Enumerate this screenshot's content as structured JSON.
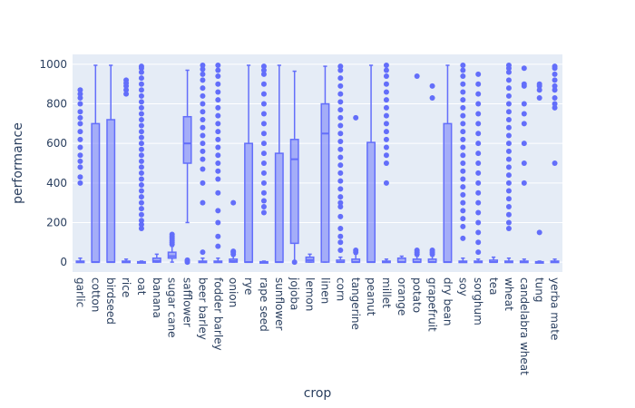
{
  "chart_data": {
    "type": "box",
    "xlabel": "crop",
    "ylabel": "performance",
    "ylim": [
      -50,
      1050
    ],
    "yticks": [
      0,
      200,
      400,
      600,
      800,
      1000
    ],
    "grid": true,
    "colors": {
      "plot_bg": "#E5ECF6",
      "box": "#636EFA",
      "box_fill": "rgba(99,110,250,0.5)",
      "grid": "#ffffff",
      "text": "#2a3f5f"
    },
    "categories": [
      "garlic",
      "cotton",
      "birdseed",
      "rice",
      "oat",
      "banana",
      "sugar cane",
      "safflower",
      "beer barley",
      "fodder barley",
      "onion",
      "rye",
      "rape seed",
      "sunflower",
      "jojoba",
      "lemon",
      "linen",
      "corn",
      "tangerine",
      "peanut",
      "millet",
      "orange",
      "potato",
      "grapefruit",
      "dry bean",
      "soy",
      "sorghum",
      "tea",
      "wheat",
      "candelabra wheat",
      "tung",
      "yerba mate"
    ],
    "boxes": [
      {
        "min": 0,
        "q1": 0,
        "median": 0,
        "q3": 5,
        "max": 20,
        "outliers": [
          400,
          430,
          480,
          510,
          540,
          580,
          620,
          660,
          700,
          730,
          760,
          800,
          830,
          850,
          870
        ]
      },
      {
        "min": 0,
        "q1": 0,
        "median": 0,
        "q3": 700,
        "max": 995,
        "outliers": []
      },
      {
        "min": 0,
        "q1": 0,
        "median": 0,
        "q3": 720,
        "max": 995,
        "outliers": []
      },
      {
        "min": 0,
        "q1": 0,
        "median": 0,
        "q3": 5,
        "max": 15,
        "outliers": [
          850,
          870,
          890,
          905,
          920
        ]
      },
      {
        "min": 0,
        "q1": 0,
        "median": 0,
        "q3": 2,
        "max": 5,
        "outliers": [
          170,
          190,
          210,
          240,
          270,
          300,
          330,
          360,
          390,
          420,
          450,
          480,
          510,
          540,
          570,
          600,
          630,
          660,
          690,
          720,
          750,
          780,
          810,
          840,
          870,
          900,
          930,
          960,
          980,
          990
        ]
      },
      {
        "min": 0,
        "q1": 0,
        "median": 5,
        "q3": 20,
        "max": 40,
        "outliers": []
      },
      {
        "min": 0,
        "q1": 20,
        "median": 30,
        "q3": 50,
        "max": 80,
        "outliers": [
          90,
          100,
          110,
          120,
          130,
          140
        ]
      },
      {
        "min": 200,
        "q1": 500,
        "median": 600,
        "q3": 735,
        "max": 970,
        "outliers": [
          0,
          5,
          10
        ]
      },
      {
        "min": 0,
        "q1": 0,
        "median": 0,
        "q3": 5,
        "max": 20,
        "outliers": [
          50,
          300,
          400,
          470,
          520,
          560,
          600,
          640,
          680,
          720,
          760,
          800,
          840,
          880,
          920,
          950,
          975,
          995
        ]
      },
      {
        "min": 0,
        "q1": 0,
        "median": 0,
        "q3": 5,
        "max": 20,
        "outliers": [
          80,
          130,
          200,
          260,
          350,
          420,
          460,
          500,
          540,
          580,
          620,
          660,
          700,
          740,
          780,
          820,
          860,
          900,
          940,
          970,
          995
        ]
      },
      {
        "min": 0,
        "q1": 0,
        "median": 5,
        "q3": 15,
        "max": 30,
        "outliers": [
          40,
          50,
          55,
          300
        ]
      },
      {
        "min": 0,
        "q1": 0,
        "median": 0,
        "q3": 600,
        "max": 995,
        "outliers": []
      },
      {
        "min": 0,
        "q1": 0,
        "median": 0,
        "q3": 2,
        "max": 5,
        "outliers": [
          250,
          280,
          310,
          350,
          400,
          450,
          500,
          550,
          600,
          650,
          700,
          750,
          800,
          850,
          900,
          950,
          970,
          990
        ]
      },
      {
        "min": 0,
        "q1": 0,
        "median": 0,
        "q3": 550,
        "max": 995,
        "outliers": []
      },
      {
        "min": 0,
        "q1": 95,
        "median": 520,
        "q3": 620,
        "max": 965,
        "outliers": [
          0
        ]
      },
      {
        "min": 0,
        "q1": 0,
        "median": 10,
        "q3": 25,
        "max": 40,
        "outliers": []
      },
      {
        "min": 0,
        "q1": 0,
        "median": 650,
        "q3": 800,
        "max": 990,
        "outliers": []
      },
      {
        "min": 0,
        "q1": 0,
        "median": 0,
        "q3": 10,
        "max": 25,
        "outliers": [
          60,
          100,
          130,
          170,
          230,
          280,
          300,
          330,
          370,
          410,
          450,
          490,
          530,
          570,
          610,
          650,
          690,
          730,
          770,
          810,
          850,
          890,
          930,
          970,
          990
        ]
      },
      {
        "min": 0,
        "q1": 0,
        "median": 0,
        "q3": 15,
        "max": 40,
        "outliers": [
          50,
          60,
          730
        ]
      },
      {
        "min": 0,
        "q1": 0,
        "median": 0,
        "q3": 605,
        "max": 995,
        "outliers": []
      },
      {
        "min": 0,
        "q1": 0,
        "median": 0,
        "q3": 5,
        "max": 15,
        "outliers": [
          400,
          500,
          540,
          580,
          620,
          660,
          700,
          740,
          780,
          820,
          860,
          900,
          940,
          970,
          995
        ]
      },
      {
        "min": 0,
        "q1": 0,
        "median": 0,
        "q3": 20,
        "max": 30,
        "outliers": []
      },
      {
        "min": 0,
        "q1": 0,
        "median": 0,
        "q3": 15,
        "max": 30,
        "outliers": [
          40,
          50,
          60,
          940
        ]
      },
      {
        "min": 0,
        "q1": 0,
        "median": 0,
        "q3": 15,
        "max": 30,
        "outliers": [
          40,
          50,
          60,
          830,
          890
        ]
      },
      {
        "min": 0,
        "q1": 0,
        "median": 0,
        "q3": 700,
        "max": 995,
        "outliers": []
      },
      {
        "min": 0,
        "q1": 0,
        "median": 0,
        "q3": 5,
        "max": 20,
        "outliers": [
          120,
          180,
          220,
          260,
          300,
          340,
          380,
          420,
          460,
          500,
          540,
          580,
          620,
          660,
          700,
          740,
          780,
          820,
          860,
          900,
          940,
          970,
          995
        ]
      },
      {
        "min": 0,
        "q1": 0,
        "median": 0,
        "q3": 5,
        "max": 15,
        "outliers": [
          50,
          100,
          150,
          200,
          250,
          300,
          350,
          400,
          450,
          500,
          550,
          600,
          650,
          700,
          750,
          800,
          850,
          900,
          950
        ]
      },
      {
        "min": 0,
        "q1": 0,
        "median": 0,
        "q3": 10,
        "max": 25,
        "outliers": []
      },
      {
        "min": 0,
        "q1": 0,
        "median": 0,
        "q3": 5,
        "max": 20,
        "outliers": [
          170,
          200,
          240,
          280,
          320,
          360,
          400,
          440,
          480,
          520,
          560,
          600,
          640,
          680,
          720,
          760,
          800,
          840,
          880,
          920,
          960,
          980,
          995
        ]
      },
      {
        "min": 0,
        "q1": 0,
        "median": 0,
        "q3": 5,
        "max": 15,
        "outliers": [
          400,
          500,
          600,
          700,
          750,
          800,
          890,
          900,
          980
        ]
      },
      {
        "min": 0,
        "q1": 0,
        "median": 0,
        "q3": 2,
        "max": 5,
        "outliers": [
          150,
          830,
          870,
          890,
          900
        ]
      },
      {
        "min": 0,
        "q1": 0,
        "median": 0,
        "q3": 5,
        "max": 15,
        "outliers": [
          500,
          780,
          800,
          830,
          870,
          890,
          920,
          950,
          980,
          990
        ]
      }
    ]
  }
}
